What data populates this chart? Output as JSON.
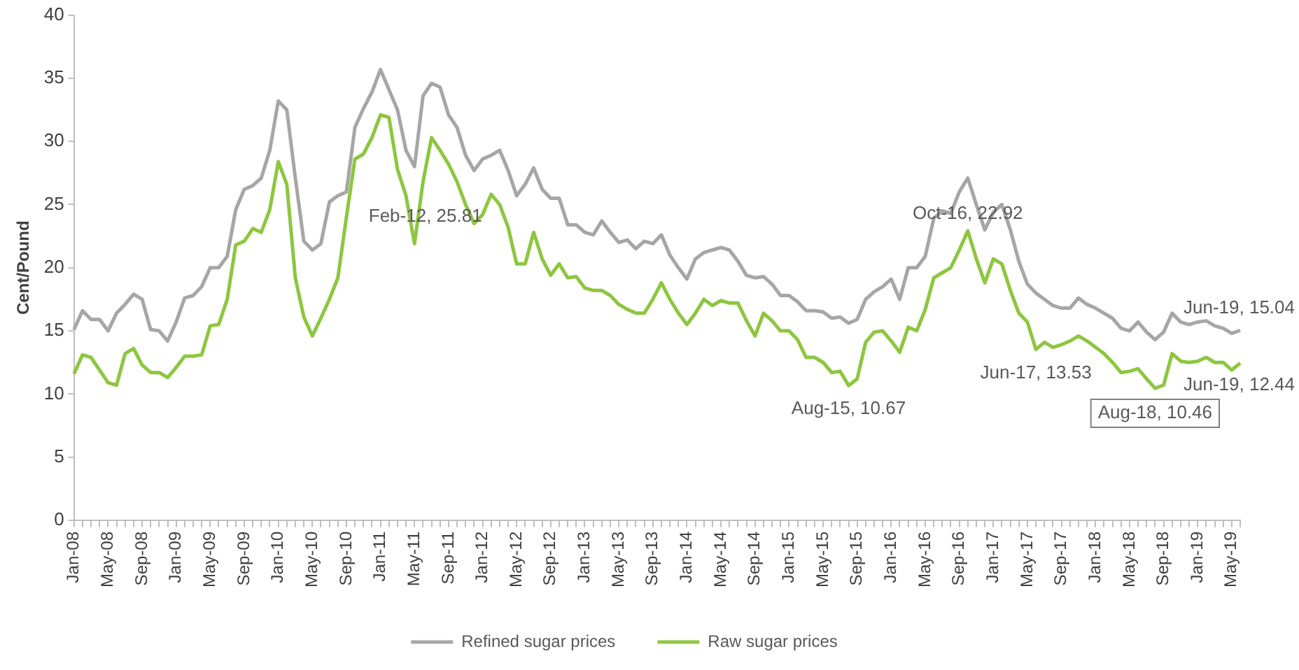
{
  "chart_data": {
    "type": "line",
    "ylabel": "Cent/Pound",
    "categories": [
      "Jan-08",
      null,
      null,
      null,
      "May-08",
      null,
      null,
      null,
      "Sep-08",
      null,
      null,
      null,
      "Jan-09",
      null,
      null,
      null,
      "May-09",
      null,
      null,
      null,
      "Sep-09",
      null,
      null,
      null,
      "Jan-10",
      null,
      null,
      null,
      "May-10",
      null,
      null,
      null,
      "Sep-10",
      null,
      null,
      null,
      "Jan-11",
      null,
      null,
      null,
      "May-11",
      null,
      null,
      null,
      "Sep-11",
      null,
      null,
      null,
      "Jan-12",
      null,
      null,
      null,
      "May-12",
      null,
      null,
      null,
      "Sep-12",
      null,
      null,
      null,
      "Jan-13",
      null,
      null,
      null,
      "May-13",
      null,
      null,
      null,
      "Sep-13",
      null,
      null,
      null,
      "Jan-14",
      null,
      null,
      null,
      "May-14",
      null,
      null,
      null,
      "Sep-14",
      null,
      null,
      null,
      "Jan-15",
      null,
      null,
      null,
      "May-15",
      null,
      null,
      null,
      "Sep-15",
      null,
      null,
      null,
      "Jan-16",
      null,
      null,
      null,
      "May-16",
      null,
      null,
      null,
      "Sep-16",
      null,
      null,
      null,
      "Jan-17",
      null,
      null,
      null,
      "May-17",
      null,
      null,
      null,
      "Sep-17",
      null,
      null,
      null,
      "Jan-18",
      null,
      null,
      null,
      "May-18",
      null,
      null,
      null,
      "Sep-18",
      null,
      null,
      null,
      "Jan-19",
      null,
      null,
      null,
      "May-19",
      null
    ],
    "series": [
      {
        "name": "Refined sugar prices",
        "color": "#a6a6a6",
        "values": [
          15.1,
          16.6,
          15.9,
          15.9,
          15.0,
          16.4,
          17.1,
          17.9,
          17.5,
          15.1,
          15.0,
          14.2,
          15.7,
          17.6,
          17.8,
          18.5,
          20.0,
          20.0,
          20.9,
          24.6,
          26.2,
          26.5,
          27.1,
          29.3,
          33.2,
          32.5,
          27.1,
          22.1,
          21.4,
          21.9,
          25.2,
          25.7,
          26.0,
          31.1,
          32.6,
          33.9,
          35.7,
          34.1,
          32.5,
          29.3,
          28.0,
          33.6,
          34.6,
          34.3,
          32.1,
          31.1,
          28.9,
          27.7,
          28.6,
          28.9,
          29.3,
          27.7,
          25.7,
          26.6,
          27.9,
          26.2,
          25.5,
          25.5,
          23.4,
          23.4,
          22.8,
          22.6,
          23.7,
          22.8,
          22.0,
          22.2,
          21.5,
          22.1,
          21.9,
          22.6,
          21.0,
          20.0,
          19.1,
          20.7,
          21.2,
          21.4,
          21.6,
          21.4,
          20.5,
          19.4,
          19.2,
          19.3,
          18.7,
          17.8,
          17.8,
          17.3,
          16.6,
          16.6,
          16.5,
          16.0,
          16.1,
          15.6,
          15.9,
          17.5,
          18.1,
          18.5,
          19.1,
          17.5,
          20.0,
          20.0,
          20.9,
          23.9,
          24.5,
          24.3,
          26.0,
          27.1,
          25.0,
          23.0,
          24.4,
          25.0,
          23.0,
          20.5,
          18.7,
          18.0,
          17.5,
          17.0,
          16.8,
          16.8,
          17.6,
          17.1,
          16.8,
          16.4,
          16.0,
          15.2,
          15.0,
          15.7,
          14.9,
          14.3,
          14.9,
          16.4,
          15.7,
          15.5,
          15.7,
          15.8,
          15.4,
          15.2,
          14.8,
          15.04
        ]
      },
      {
        "name": "Raw sugar prices",
        "color": "#8dc63f",
        "values": [
          11.6,
          13.1,
          12.9,
          11.9,
          10.9,
          10.7,
          13.2,
          13.6,
          12.3,
          11.7,
          11.7,
          11.3,
          12.1,
          13.0,
          13.0,
          13.1,
          15.4,
          15.5,
          17.5,
          21.8,
          22.1,
          23.1,
          22.8,
          24.6,
          28.4,
          26.6,
          19.2,
          16.1,
          14.6,
          16.0,
          17.5,
          19.2,
          24.0,
          28.6,
          29.0,
          30.3,
          32.1,
          31.9,
          27.8,
          25.7,
          21.9,
          26.8,
          30.3,
          29.3,
          28.2,
          26.8,
          25.0,
          23.5,
          24.2,
          25.81,
          25.0,
          23.2,
          20.3,
          20.3,
          22.8,
          20.7,
          19.4,
          20.3,
          19.2,
          19.3,
          18.4,
          18.2,
          18.2,
          17.8,
          17.1,
          16.7,
          16.4,
          16.4,
          17.5,
          18.8,
          17.5,
          16.4,
          15.5,
          16.4,
          17.5,
          17.0,
          17.4,
          17.2,
          17.2,
          15.8,
          14.6,
          16.4,
          15.8,
          15.0,
          15.0,
          14.3,
          12.9,
          12.9,
          12.5,
          11.7,
          11.8,
          10.67,
          11.2,
          14.1,
          14.9,
          15.0,
          14.2,
          13.3,
          15.3,
          15.0,
          16.7,
          19.2,
          19.6,
          20.0,
          21.4,
          22.92,
          20.7,
          18.8,
          20.7,
          20.3,
          18.2,
          16.4,
          15.7,
          13.53,
          14.1,
          13.7,
          13.9,
          14.2,
          14.6,
          14.2,
          13.7,
          13.2,
          12.5,
          11.7,
          11.8,
          12.0,
          11.2,
          10.46,
          10.7,
          13.2,
          12.6,
          12.5,
          12.6,
          12.9,
          12.5,
          12.5,
          11.9,
          12.44
        ]
      }
    ],
    "ylim": [
      0,
      40
    ],
    "yticks": [
      0,
      5,
      10,
      15,
      20,
      25,
      30,
      35,
      40
    ],
    "grid": false,
    "legend": "bottom",
    "annotations": [
      {
        "text": "Feb-12, 25.81",
        "y": 25.81
      },
      {
        "text": "Oct-16, 22.92",
        "y": 22.92
      },
      {
        "text": "Aug-15, 10.67",
        "y": 10.67
      },
      {
        "text": "Jun-17, 13.53",
        "y": 13.53
      },
      {
        "text": "Jun-19, 15.04",
        "y": 15.04
      },
      {
        "text": "Jun-19, 12.44",
        "y": 12.44
      },
      {
        "text": "Aug-18, 10.46",
        "y": 10.46
      }
    ]
  }
}
